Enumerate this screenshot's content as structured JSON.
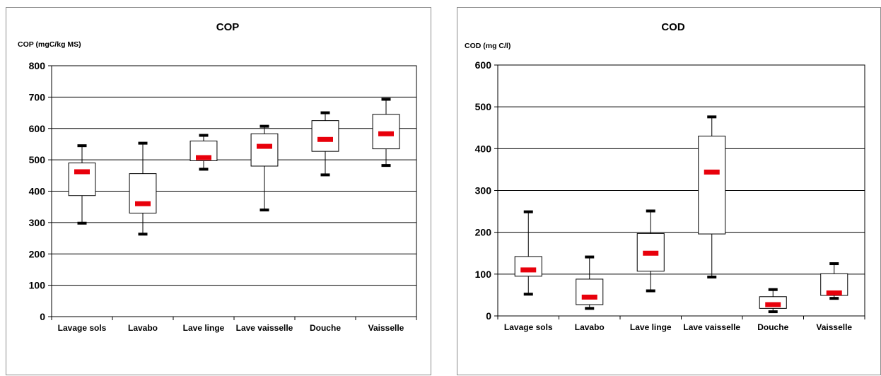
{
  "chart_data": [
    {
      "type": "boxplot",
      "title": "COP",
      "ylabel": "COP (mgC/kg MS)",
      "xlabel": "",
      "ylim": [
        0,
        800
      ],
      "yticks": [
        0,
        100,
        200,
        300,
        400,
        500,
        600,
        700,
        800
      ],
      "grid": true,
      "categories": [
        "Lavage sols",
        "Lavabo",
        "Lave linge",
        "Lave vaisselle",
        "Douche",
        "Vaisselle"
      ],
      "boxes": [
        {
          "min": 298,
          "q1": 386,
          "median": 462,
          "q3": 490,
          "max": 545
        },
        {
          "min": 263,
          "q1": 330,
          "median": 360,
          "q3": 456,
          "max": 553
        },
        {
          "min": 470,
          "q1": 497,
          "median": 507,
          "q3": 560,
          "max": 578
        },
        {
          "min": 340,
          "q1": 480,
          "median": 543,
          "q3": 583,
          "max": 607
        },
        {
          "min": 452,
          "q1": 527,
          "median": 565,
          "q3": 625,
          "max": 650
        },
        {
          "min": 482,
          "q1": 535,
          "median": 583,
          "q3": 645,
          "max": 693
        }
      ],
      "colors": {
        "median": "#e8000b",
        "whisker_cap": "#000000",
        "box_fill": "#ffffff",
        "grid": "#000000"
      }
    },
    {
      "type": "boxplot",
      "title": "COD",
      "ylabel": "COD (mg C/l)",
      "xlabel": "",
      "ylim": [
        0,
        600
      ],
      "yticks": [
        0,
        100,
        200,
        300,
        400,
        500,
        600
      ],
      "grid": true,
      "categories": [
        "Lavage sols",
        "Lavabo",
        "Lave linge",
        "Lave vaisselle",
        "Douche",
        "Vaisselle"
      ],
      "boxes": [
        {
          "min": 52,
          "q1": 95,
          "median": 110,
          "q3": 142,
          "max": 249
        },
        {
          "min": 18,
          "q1": 27,
          "median": 45,
          "q3": 88,
          "max": 141
        },
        {
          "min": 60,
          "q1": 107,
          "median": 150,
          "q3": 197,
          "max": 251
        },
        {
          "min": 93,
          "q1": 196,
          "median": 344,
          "q3": 430,
          "max": 476
        },
        {
          "min": 10,
          "q1": 18,
          "median": 27,
          "q3": 46,
          "max": 63
        },
        {
          "min": 42,
          "q1": 49,
          "median": 55,
          "q3": 101,
          "max": 125
        }
      ],
      "colors": {
        "median": "#e8000b",
        "whisker_cap": "#000000",
        "box_fill": "#ffffff",
        "grid": "#000000"
      }
    }
  ]
}
